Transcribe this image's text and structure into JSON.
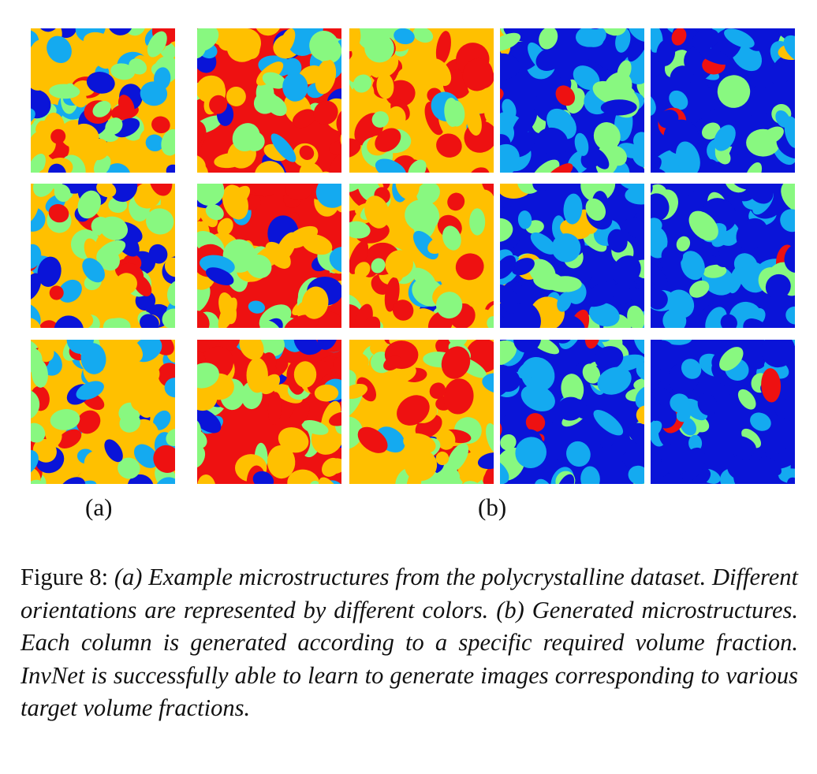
{
  "figure": {
    "panel_labels": [
      "(a)",
      "(b)"
    ],
    "caption_lead": "Figure 8:",
    "caption_text": "(a) Example microstructures from the polycrystalline dataset. Different orientations are represented by different colors. (b) Generated microstructures. Each column is generated according to a specific required volume fraction. InvNet is successfully able to learn to generate images corresponding to various target volume fractions."
  },
  "palette": {
    "orange": "#FFC000",
    "red": "#EE1111",
    "green": "#88F880",
    "lightblue": "#14AAF0",
    "blue": "#0A14D8"
  },
  "columns": [
    {
      "panel": "a",
      "dominant": "mixed"
    },
    {
      "panel": "b",
      "dominant": "orange-red"
    },
    {
      "panel": "b",
      "dominant": "red-orange"
    },
    {
      "panel": "b",
      "dominant": "blue-lightblue"
    },
    {
      "panel": "b",
      "dominant": "blue"
    }
  ]
}
